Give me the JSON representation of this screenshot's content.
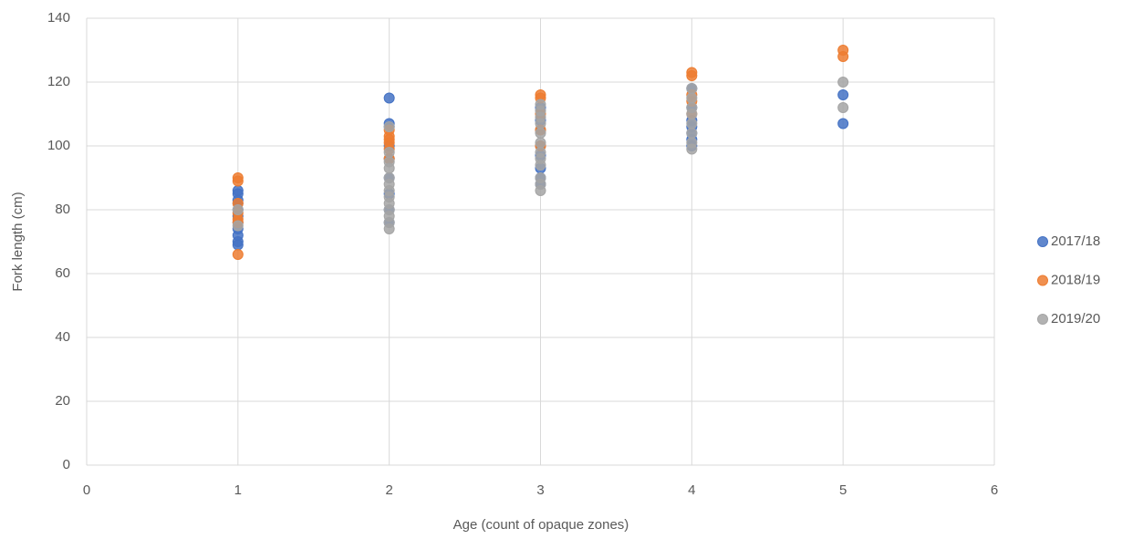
{
  "chart_data": {
    "type": "scatter",
    "xlabel": "Age (count of opaque zones)",
    "ylabel": "Fork length (cm)",
    "xlim": [
      0,
      6
    ],
    "xticks": [
      0,
      1,
      2,
      3,
      4,
      5,
      6
    ],
    "ylim": [
      0,
      140
    ],
    "yticks": [
      0,
      20,
      40,
      60,
      80,
      100,
      120,
      140
    ],
    "grid": true,
    "legend": "right",
    "series": [
      {
        "name": "2017/18",
        "color": "#4472c4",
        "x": [
          1,
          1,
          1,
          1,
          1,
          1,
          1,
          1,
          1,
          1,
          1,
          2,
          2,
          2,
          2,
          2,
          2,
          2,
          2,
          2,
          3,
          3,
          3,
          3,
          3,
          3,
          3,
          3,
          4,
          4,
          4,
          4,
          4,
          4,
          4,
          5,
          5
        ],
        "values": [
          86,
          85,
          83,
          82,
          80,
          78,
          76,
          74,
          72,
          70,
          69,
          115,
          107,
          106,
          100,
          96,
          90,
          85,
          80,
          76,
          112,
          108,
          105,
          100,
          97,
          93,
          90,
          88,
          118,
          112,
          108,
          106,
          104,
          102,
          100,
          116,
          107
        ]
      },
      {
        "name": "2018/19",
        "color": "#ed7d31",
        "x": [
          1,
          1,
          1,
          1,
          1,
          1,
          1,
          2,
          2,
          2,
          2,
          2,
          2,
          3,
          3,
          3,
          3,
          3,
          4,
          4,
          4,
          4,
          4,
          5,
          5
        ],
        "values": [
          90,
          89,
          82,
          79,
          77,
          76,
          66,
          105,
          103,
          102,
          101,
          99,
          96,
          116,
          115,
          110,
          105,
          100,
          123,
          122,
          116,
          114,
          110,
          130,
          128
        ]
      },
      {
        "name": "2019/20",
        "color": "#a5a5a5",
        "x": [
          1,
          1,
          2,
          2,
          2,
          2,
          2,
          2,
          2,
          2,
          2,
          2,
          2,
          2,
          2,
          3,
          3,
          3,
          3,
          3,
          3,
          3,
          3,
          3,
          3,
          3,
          3,
          4,
          4,
          4,
          4,
          4,
          4,
          4,
          4,
          5,
          5
        ],
        "values": [
          80,
          75,
          106,
          98,
          95,
          93,
          90,
          88,
          86,
          84,
          82,
          80,
          78,
          76,
          74,
          113,
          111,
          109,
          107,
          104,
          101,
          98,
          96,
          94,
          90,
          88,
          86,
          118,
          115,
          112,
          110,
          107,
          104,
          101,
          99,
          120,
          112
        ]
      }
    ]
  }
}
